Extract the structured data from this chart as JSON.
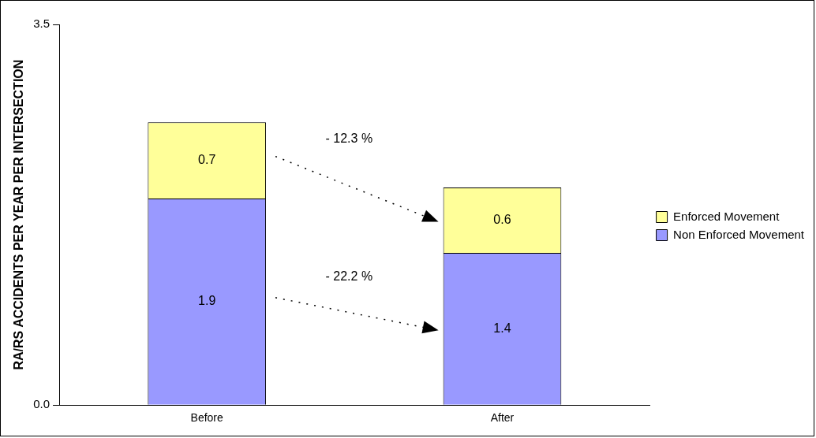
{
  "chart_data": {
    "type": "bar",
    "ylabel": "RA/RS ACCIDENTS PER YEAR PER INTERSECTION",
    "categories": [
      "Before",
      "After"
    ],
    "series": [
      {
        "name": "Non Enforced Movement",
        "color": "#9999ff",
        "values": [
          1.9,
          1.4
        ]
      },
      {
        "name": "Enforced Movement",
        "color": "#ffff99",
        "values": [
          0.7,
          0.6
        ]
      }
    ],
    "stacked": true,
    "ylim": [
      0,
      3.5
    ],
    "yticks": [
      {
        "value": 0,
        "label": "0.0"
      },
      {
        "value": 3.5,
        "label": "3.5"
      }
    ],
    "grid": false,
    "legend": "right",
    "data_labels": true,
    "annotations": [
      "- 12.3 %",
      "- 22.2 %"
    ]
  }
}
